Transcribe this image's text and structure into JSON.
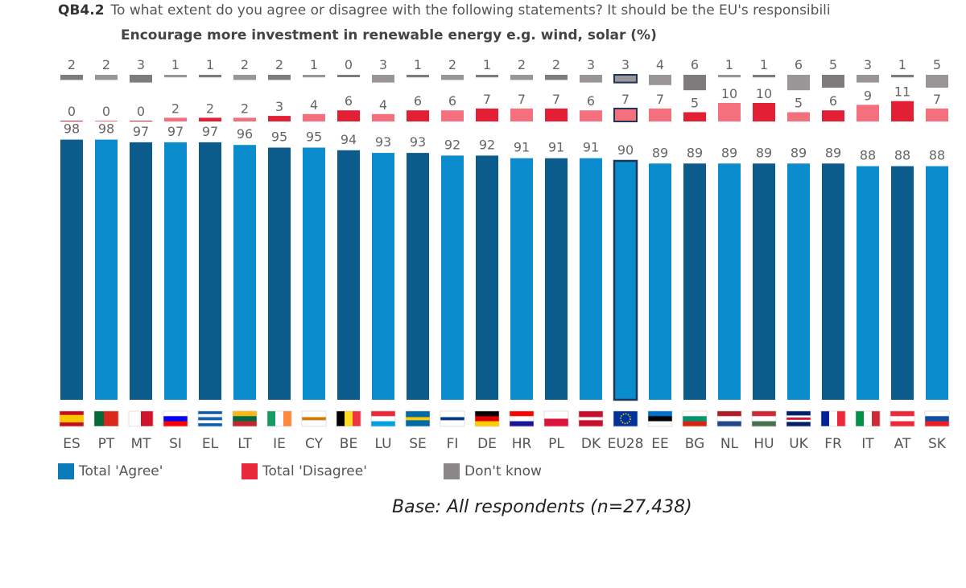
{
  "header": {
    "code": "QB4.2",
    "question": "To what extent do you agree or disagree with the following statements? It should be the EU's responsibili",
    "subtitle": "Encourage more investment in renewable energy e.g. wind, solar (%)"
  },
  "legend": {
    "agree": "Total 'Agree'",
    "disagree": "Total 'Disagree'",
    "dont_know": "Don't know"
  },
  "base_note": "Base: All respondents (n=27,438)",
  "colors": {
    "agree_dark": "#0b5b8c",
    "agree_light": "#0b8ccc",
    "disagree_dark": "#e21f35",
    "disagree_light": "#f4707c",
    "dont_know_dark": "#7f7a7b",
    "dont_know_light": "#9a9596",
    "highlight_outline": "#1d3557"
  },
  "chart_data": {
    "type": "bar",
    "stacked": false,
    "categories": [
      "ES",
      "PT",
      "MT",
      "SI",
      "EL",
      "LT",
      "IE",
      "CY",
      "BE",
      "LU",
      "SE",
      "FI",
      "DE",
      "HR",
      "PL",
      "DK",
      "EU28",
      "EE",
      "BG",
      "NL",
      "HU",
      "UK",
      "FR",
      "IT",
      "AT",
      "SK"
    ],
    "highlight": "EU28",
    "series": [
      {
        "name": "Total 'Agree'",
        "values": [
          98,
          98,
          97,
          97,
          97,
          96,
          95,
          95,
          94,
          93,
          93,
          92,
          92,
          91,
          91,
          91,
          90,
          89,
          89,
          89,
          89,
          89,
          89,
          88,
          88,
          88
        ]
      },
      {
        "name": "Total 'Disagree'",
        "values": [
          0,
          0,
          0,
          2,
          2,
          2,
          3,
          4,
          6,
          4,
          6,
          6,
          7,
          7,
          7,
          6,
          7,
          7,
          5,
          10,
          10,
          5,
          6,
          9,
          11,
          7
        ]
      },
      {
        "name": "Don't know",
        "values": [
          2,
          2,
          3,
          1,
          1,
          2,
          2,
          1,
          0,
          3,
          1,
          2,
          1,
          2,
          2,
          3,
          3,
          4,
          6,
          1,
          1,
          6,
          5,
          3,
          1,
          5
        ]
      }
    ],
    "flags": [
      {
        "code": "ES",
        "stripes": "h",
        "colors": [
          "#c60b1e",
          "#ffc400",
          "#c60b1e"
        ],
        "ratios": [
          1,
          2,
          1
        ]
      },
      {
        "code": "PT",
        "stripes": "v",
        "colors": [
          "#046a38",
          "#da291c"
        ],
        "ratios": [
          2,
          3
        ]
      },
      {
        "code": "MT",
        "stripes": "v",
        "colors": [
          "#ffffff",
          "#cf142b"
        ],
        "ratios": [
          1,
          1
        ]
      },
      {
        "code": "SI",
        "stripes": "h",
        "colors": [
          "#ffffff",
          "#0000ff",
          "#ff0000"
        ],
        "ratios": [
          1,
          1,
          1
        ]
      },
      {
        "code": "EL",
        "stripes": "h",
        "colors": [
          "#0d5eaf",
          "#ffffff",
          "#0d5eaf",
          "#ffffff",
          "#0d5eaf"
        ],
        "ratios": [
          1,
          1,
          1,
          1,
          1
        ]
      },
      {
        "code": "LT",
        "stripes": "h",
        "colors": [
          "#fdb913",
          "#006a44",
          "#c1272d"
        ],
        "ratios": [
          1,
          1,
          1
        ]
      },
      {
        "code": "IE",
        "stripes": "v",
        "colors": [
          "#169b62",
          "#ffffff",
          "#ff883e"
        ],
        "ratios": [
          1,
          1,
          1
        ]
      },
      {
        "code": "CY",
        "stripes": "h",
        "colors": [
          "#ffffff",
          "#d57800",
          "#ffffff"
        ],
        "ratios": [
          2,
          1,
          2
        ]
      },
      {
        "code": "BE",
        "stripes": "v",
        "colors": [
          "#000000",
          "#fdda24",
          "#ef3340"
        ],
        "ratios": [
          1,
          1,
          1
        ]
      },
      {
        "code": "LU",
        "stripes": "h",
        "colors": [
          "#ed2939",
          "#ffffff",
          "#00a1de"
        ],
        "ratios": [
          1,
          1,
          1
        ]
      },
      {
        "code": "SE",
        "stripes": "h",
        "colors": [
          "#006aa7",
          "#fecc00",
          "#006aa7"
        ],
        "ratios": [
          2,
          1,
          2
        ]
      },
      {
        "code": "FI",
        "stripes": "h",
        "colors": [
          "#ffffff",
          "#003580",
          "#ffffff"
        ],
        "ratios": [
          2,
          1,
          2
        ]
      },
      {
        "code": "DE",
        "stripes": "h",
        "colors": [
          "#000000",
          "#dd0000",
          "#ffce00"
        ],
        "ratios": [
          1,
          1,
          1
        ]
      },
      {
        "code": "HR",
        "stripes": "h",
        "colors": [
          "#ff0000",
          "#ffffff",
          "#171796"
        ],
        "ratios": [
          1,
          1,
          1
        ]
      },
      {
        "code": "PL",
        "stripes": "h",
        "colors": [
          "#ffffff",
          "#dc143c"
        ],
        "ratios": [
          1,
          1
        ]
      },
      {
        "code": "DK",
        "stripes": "h",
        "colors": [
          "#c8102e",
          "#ffffff",
          "#c8102e"
        ],
        "ratios": [
          2,
          1,
          2
        ]
      },
      {
        "code": "EU28",
        "stripes": "h",
        "colors": [
          "#003399"
        ],
        "ratios": [
          1
        ]
      },
      {
        "code": "EE",
        "stripes": "h",
        "colors": [
          "#0072ce",
          "#000000",
          "#ffffff"
        ],
        "ratios": [
          1,
          1,
          1
        ]
      },
      {
        "code": "BG",
        "stripes": "h",
        "colors": [
          "#ffffff",
          "#00966e",
          "#d62612"
        ],
        "ratios": [
          1,
          1,
          1
        ]
      },
      {
        "code": "NL",
        "stripes": "h",
        "colors": [
          "#ae1c28",
          "#ffffff",
          "#21468b"
        ],
        "ratios": [
          1,
          1,
          1
        ]
      },
      {
        "code": "HU",
        "stripes": "h",
        "colors": [
          "#ce2939",
          "#ffffff",
          "#477050"
        ],
        "ratios": [
          1,
          1,
          1
        ]
      },
      {
        "code": "UK",
        "stripes": "h",
        "colors": [
          "#012169",
          "#ffffff",
          "#c8102e",
          "#ffffff",
          "#012169"
        ],
        "ratios": [
          2,
          1,
          1,
          1,
          2
        ]
      },
      {
        "code": "FR",
        "stripes": "v",
        "colors": [
          "#002395",
          "#ffffff",
          "#ed2939"
        ],
        "ratios": [
          1,
          1,
          1
        ]
      },
      {
        "code": "IT",
        "stripes": "v",
        "colors": [
          "#009246",
          "#ffffff",
          "#ce2b37"
        ],
        "ratios": [
          1,
          1,
          1
        ]
      },
      {
        "code": "AT",
        "stripes": "h",
        "colors": [
          "#ed2939",
          "#ffffff",
          "#ed2939"
        ],
        "ratios": [
          1,
          1,
          1
        ]
      },
      {
        "code": "SK",
        "stripes": "h",
        "colors": [
          "#ffffff",
          "#0b4ea2",
          "#ee1c25"
        ],
        "ratios": [
          1,
          1,
          1
        ]
      }
    ]
  }
}
